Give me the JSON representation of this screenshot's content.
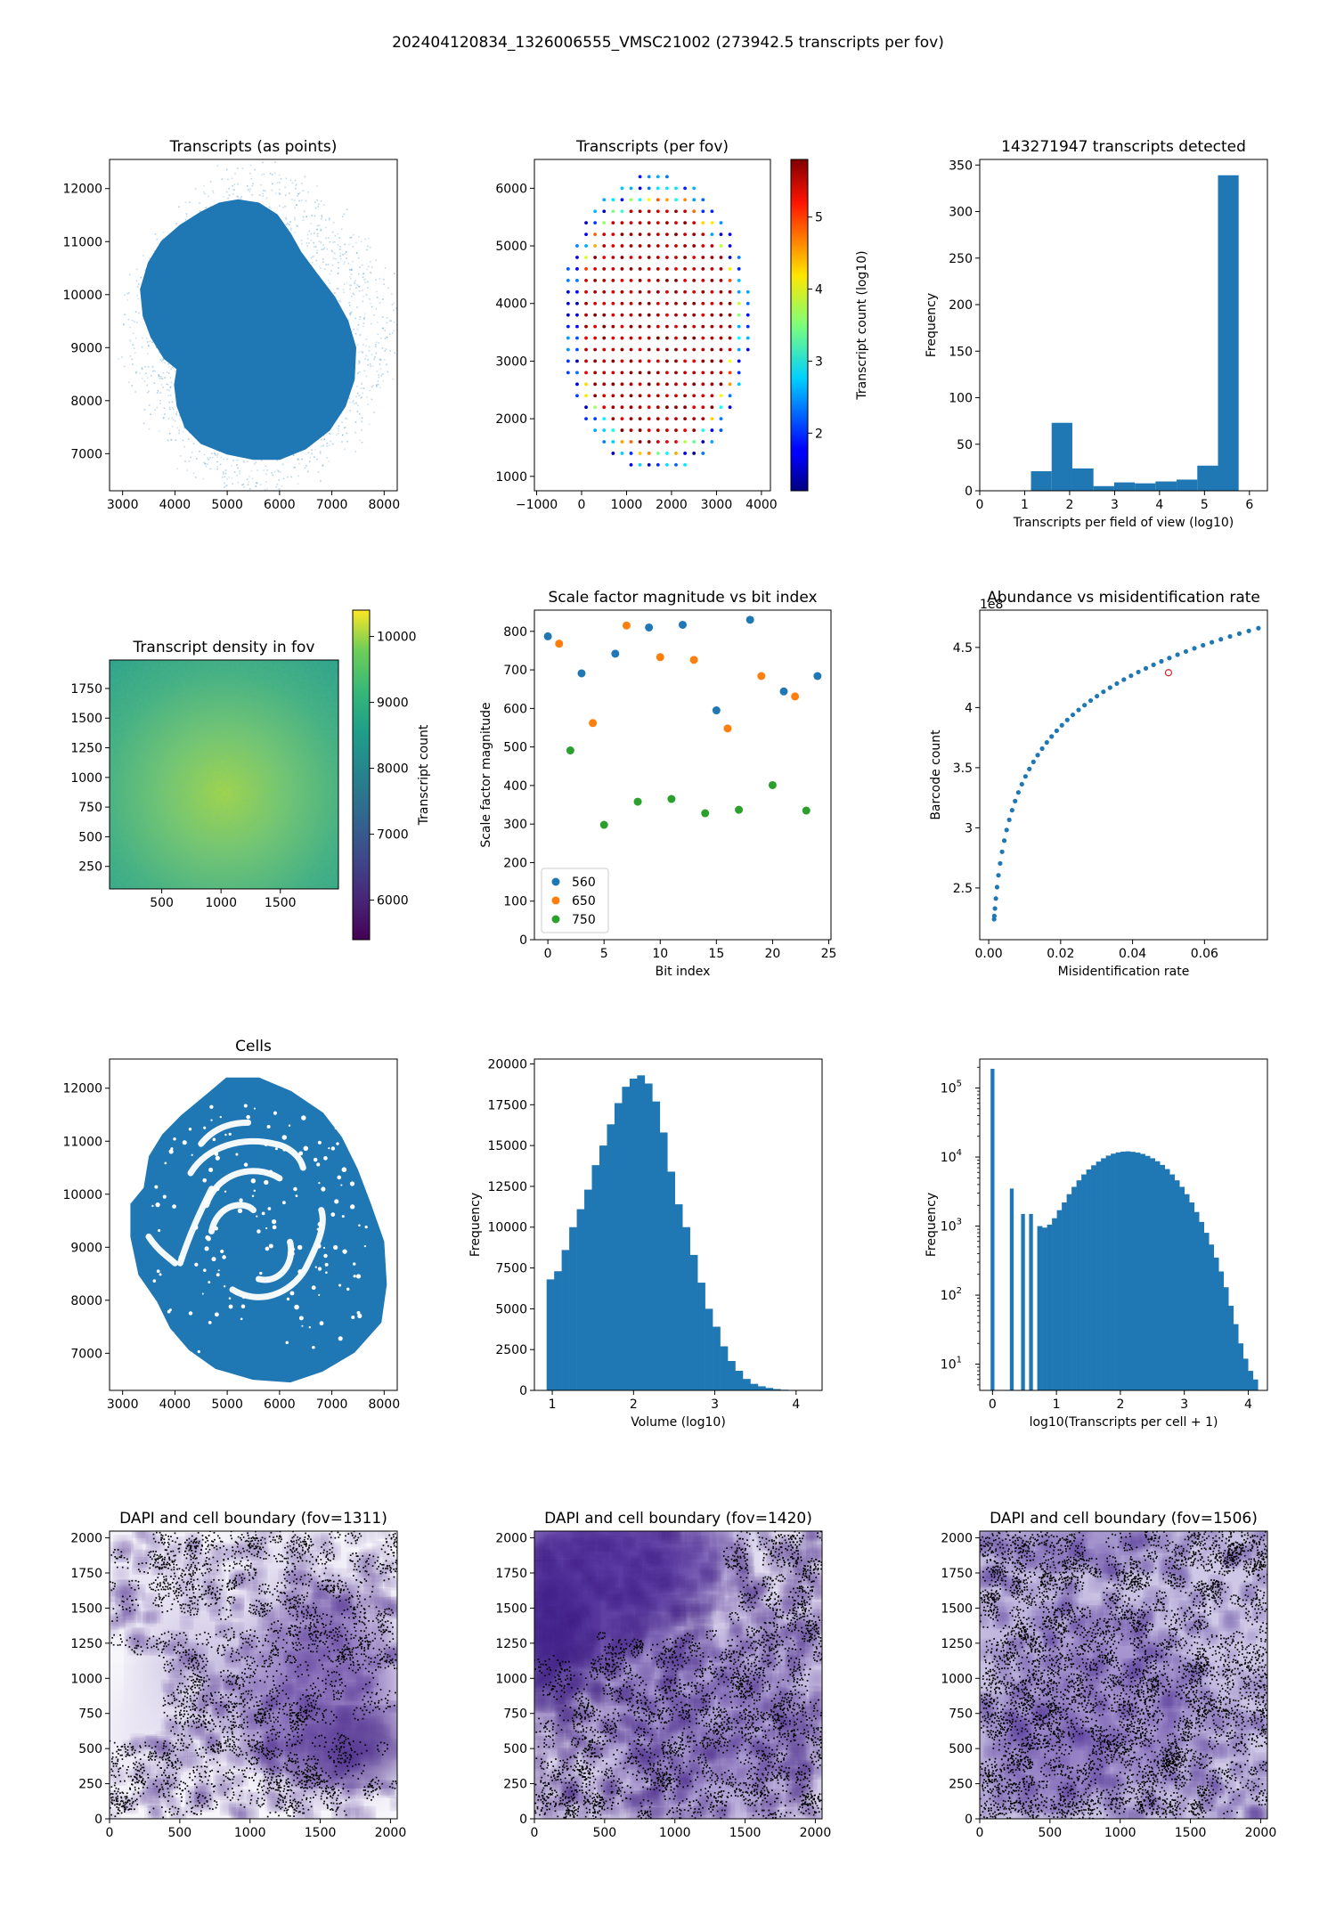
{
  "figure": {
    "title": "202404120834_1326006555_VMSC21002 (273942.5 transcripts per fov)"
  },
  "colors": {
    "blue": "#1f77b4",
    "orange": "#ff7f0e",
    "green": "#2ca02c",
    "purple": "#5a3a99",
    "black": "#000000"
  },
  "chart_data": [
    {
      "id": "transcripts-points",
      "type": "scatter",
      "title": "Transcripts (as points)",
      "xlabel": "",
      "ylabel": "",
      "xlim": [
        2750,
        8250
      ],
      "ylim": [
        6300,
        12550
      ],
      "xticks": [
        3000,
        4000,
        5000,
        6000,
        7000,
        8000
      ],
      "yticks": [
        7000,
        8000,
        9000,
        10000,
        11000,
        12000
      ],
      "description_shape": "dense tissue blob, heart/peanut shape",
      "outline": [
        [
          3350,
          10100
        ],
        [
          3500,
          10600
        ],
        [
          3750,
          11000
        ],
        [
          4100,
          11300
        ],
        [
          4500,
          11550
        ],
        [
          4850,
          11720
        ],
        [
          5200,
          11780
        ],
        [
          5600,
          11720
        ],
        [
          5950,
          11500
        ],
        [
          6200,
          11150
        ],
        [
          6400,
          10800
        ],
        [
          6700,
          10400
        ],
        [
          7050,
          9950
        ],
        [
          7300,
          9500
        ],
        [
          7450,
          9000
        ],
        [
          7420,
          8400
        ],
        [
          7250,
          7900
        ],
        [
          6950,
          7450
        ],
        [
          6500,
          7100
        ],
        [
          6000,
          6900
        ],
        [
          5500,
          6900
        ],
        [
          5000,
          7000
        ],
        [
          4500,
          7200
        ],
        [
          4200,
          7500
        ],
        [
          4050,
          7900
        ],
        [
          4000,
          8300
        ],
        [
          4050,
          8600
        ],
        [
          3800,
          8800
        ],
        [
          3550,
          9200
        ],
        [
          3400,
          9600
        ],
        [
          3350,
          10100
        ]
      ]
    },
    {
      "id": "transcripts-per-fov",
      "type": "scatter",
      "title": "Transcripts (per fov)",
      "xlim": [
        -1050,
        4200
      ],
      "ylim": [
        750,
        6500
      ],
      "xticks": [
        -1000,
        0,
        1000,
        2000,
        3000,
        4000
      ],
      "yticks": [
        1000,
        2000,
        3000,
        4000,
        5000,
        6000
      ],
      "colorbar_label": "Transcript count (log10)",
      "colorbar_range": [
        1.2,
        5.8
      ],
      "colorbar_ticks": [
        2,
        3,
        4,
        5
      ],
      "grid_spacing": 200,
      "ellipse_center": [
        1650,
        3650
      ],
      "ellipse_radii": [
        2100,
        2600
      ]
    },
    {
      "id": "transcripts-histogram",
      "type": "bar",
      "title": "143271947 transcripts detected",
      "xlabel": "Transcripts per field of view (log10)",
      "ylabel": "Frequency",
      "xlim": [
        0,
        6.4
      ],
      "ylim": [
        0,
        356
      ],
      "xticks": [
        0,
        1,
        2,
        3,
        4,
        5,
        6
      ],
      "yticks": [
        0,
        50,
        100,
        150,
        200,
        250,
        300,
        350
      ],
      "bin_edges": [
        1.14,
        1.6,
        2.06,
        2.53,
        2.99,
        3.45,
        3.91,
        4.38,
        4.84,
        5.3,
        5.76
      ],
      "values": [
        21,
        73,
        24,
        5,
        9,
        8,
        10,
        12,
        27,
        339
      ]
    },
    {
      "id": "transcript-density",
      "type": "heatmap",
      "title": "Transcript density in fov",
      "xlim": [
        60,
        1990
      ],
      "ylim": [
        60,
        1990
      ],
      "xticks": [
        500,
        1000,
        1500
      ],
      "yticks": [
        250,
        500,
        750,
        1000,
        1250,
        1500,
        1750
      ],
      "colorbar_label": "Transcript count",
      "colorbar_range": [
        5400,
        10400
      ],
      "colorbar_ticks": [
        6000,
        7000,
        8000,
        9000,
        10000
      ]
    },
    {
      "id": "scale-factor",
      "type": "scatter",
      "title": "Scale factor magnitude vs bit index",
      "xlabel": "Bit index",
      "ylabel": "Scale factor magnitude",
      "xlim": [
        -1.2,
        25.2
      ],
      "ylim": [
        0,
        855
      ],
      "xticks": [
        0,
        5,
        10,
        15,
        20,
        25
      ],
      "yticks": [
        0,
        100,
        200,
        300,
        400,
        500,
        600,
        700,
        800
      ],
      "legend_position": "lower-left",
      "series": [
        {
          "name": "560",
          "color": "#1f77b4",
          "x": [
            0,
            3,
            6,
            9,
            12,
            15,
            18,
            21,
            24
          ],
          "y": [
            787,
            691,
            742,
            810,
            817,
            595,
            830,
            644,
            684
          ]
        },
        {
          "name": "650",
          "color": "#ff7f0e",
          "x": [
            1,
            4,
            7,
            10,
            13,
            16,
            19,
            22
          ],
          "y": [
            768,
            562,
            815,
            733,
            726,
            548,
            684,
            631
          ]
        },
        {
          "name": "750",
          "color": "#2ca02c",
          "x": [
            2,
            5,
            8,
            11,
            14,
            17,
            20,
            23
          ],
          "y": [
            491,
            298,
            358,
            365,
            328,
            337,
            401,
            335
          ]
        }
      ]
    },
    {
      "id": "abundance-misid",
      "type": "scatter",
      "title": "Abundance vs misidentification rate",
      "xlabel": "Misidentification rate",
      "ylabel": "Barcode count",
      "offset_label": "1e8",
      "xlim": [
        -0.0025,
        0.0775
      ],
      "ylim": [
        2.07,
        4.81
      ],
      "xticks": [
        0.0,
        0.02,
        0.04,
        0.06
      ],
      "xtick_labels": [
        "0.00",
        "0.02",
        "0.04",
        "0.06"
      ],
      "yticks": [
        2.5,
        3.0,
        3.5,
        4.0,
        4.5
      ],
      "curve_points": 50,
      "x_range": [
        0.0015,
        0.075
      ],
      "y_start": 2.24,
      "y_end": 4.66,
      "highlight_point": {
        "x": 0.05,
        "y": 4.29,
        "color": "#d62728"
      }
    },
    {
      "id": "cells",
      "type": "scatter",
      "title": "Cells",
      "xlim": [
        2750,
        8250
      ],
      "ylim": [
        6300,
        12550
      ],
      "xticks": [
        3000,
        4000,
        5000,
        6000,
        7000,
        8000
      ],
      "yticks": [
        7000,
        8000,
        9000,
        10000,
        11000,
        12000
      ]
    },
    {
      "id": "volume-hist",
      "type": "bar",
      "title": "",
      "xlabel": "Volume (log10)",
      "ylabel": "Frequency",
      "xlim": [
        0.78,
        4.32
      ],
      "ylim": [
        0,
        20300
      ],
      "xticks": [
        1,
        2,
        3,
        4
      ],
      "yticks": [
        0,
        2500,
        5000,
        7500,
        10000,
        12500,
        15000,
        17500,
        20000
      ],
      "bin_edges_range": [
        0.93,
        4.18
      ],
      "values": [
        6800,
        7300,
        8600,
        10000,
        11100,
        12300,
        13800,
        15000,
        16300,
        17600,
        18600,
        19100,
        19300,
        18800,
        17700,
        15800,
        13400,
        11400,
        10000,
        8300,
        6600,
        5000,
        3900,
        2700,
        1800,
        1200,
        700,
        400,
        250,
        150,
        80,
        40,
        20,
        10,
        5
      ]
    },
    {
      "id": "transcripts-per-cell",
      "type": "bar",
      "title": "",
      "xlabel": "log10(Transcripts per cell + 1)",
      "ylabel": "Frequency",
      "yscale": "log",
      "xlim": [
        -0.2,
        4.3
      ],
      "ylim_log10": [
        0.62,
        5.42
      ],
      "xticks": [
        0,
        1,
        2,
        3,
        4
      ],
      "yticks_exp": [
        1,
        2,
        3,
        4,
        5
      ],
      "spikes": [
        {
          "x": 0.0,
          "value": 190000
        },
        {
          "x": 0.301,
          "value": 3500
        },
        {
          "x": 0.477,
          "value": 1500
        },
        {
          "x": 0.602,
          "value": 1500
        }
      ],
      "bins_from": 0.7,
      "bins_to": 4.15,
      "bin_values": [
        1000,
        950,
        1050,
        1300,
        1700,
        2200,
        2900,
        3700,
        4600,
        5600,
        6600,
        7600,
        8600,
        9600,
        10500,
        11200,
        11700,
        12000,
        12100,
        11900,
        11600,
        11100,
        10400,
        9600,
        8700,
        7700,
        6700,
        5600,
        4600,
        3700,
        2900,
        2200,
        1600,
        1150,
        800,
        540,
        350,
        220,
        130,
        70,
        38,
        20,
        12,
        8,
        6
      ]
    },
    {
      "id": "dapi-1311",
      "type": "heatmap",
      "title": "DAPI and cell boundary (fov=1311)",
      "xlim": [
        0,
        2048
      ],
      "ylim": [
        0,
        2048
      ],
      "xticks": [
        0,
        500,
        1000,
        1500,
        2000
      ],
      "yticks": [
        0,
        250,
        500,
        750,
        1000,
        1250,
        1500,
        1750,
        2000
      ]
    },
    {
      "id": "dapi-1420",
      "type": "heatmap",
      "title": "DAPI and cell boundary (fov=1420)",
      "xlim": [
        0,
        2048
      ],
      "ylim": [
        0,
        2048
      ],
      "xticks": [
        0,
        500,
        1000,
        1500,
        2000
      ],
      "yticks": [
        0,
        250,
        500,
        750,
        1000,
        1250,
        1500,
        1750,
        2000
      ]
    },
    {
      "id": "dapi-1506",
      "type": "heatmap",
      "title": "DAPI and cell boundary (fov=1506)",
      "xlim": [
        0,
        2048
      ],
      "ylim": [
        0,
        2048
      ],
      "xticks": [
        0,
        500,
        1000,
        1500,
        2000
      ],
      "yticks": [
        0,
        250,
        500,
        750,
        1000,
        1250,
        1500,
        1750,
        2000
      ]
    }
  ]
}
